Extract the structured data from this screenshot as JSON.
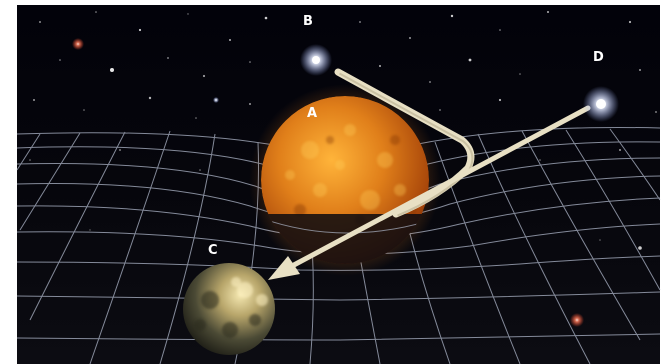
{
  "labels": {
    "a": "A",
    "b": "B",
    "c": "C",
    "d": "D"
  },
  "colors": {
    "space": "#050509",
    "grid": "#bfc6d8",
    "sun": "#d9791c",
    "light_path": "#e8e0c4",
    "star_glow": "#ffffff"
  }
}
